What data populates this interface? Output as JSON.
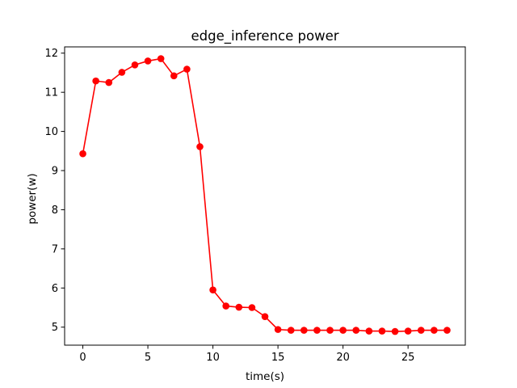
{
  "chart_data": {
    "type": "line",
    "title": "edge_inference power",
    "xlabel": "time(s)",
    "ylabel": "power(w)",
    "xlim": [
      -1.4,
      29.4
    ],
    "ylim": [
      4.54,
      12.16
    ],
    "xticks": [
      0,
      5,
      10,
      15,
      20,
      25
    ],
    "yticks": [
      5,
      6,
      7,
      8,
      9,
      10,
      11,
      12
    ],
    "grid": false,
    "series": [
      {
        "color": "#ff0000",
        "marker": "circle",
        "x": [
          0,
          1,
          2,
          3,
          4,
          5,
          6,
          7,
          8,
          9,
          10,
          11,
          12,
          13,
          14,
          15,
          16,
          17,
          18,
          19,
          20,
          21,
          22,
          23,
          24,
          25,
          26,
          27,
          28
        ],
        "y": [
          9.43,
          11.29,
          11.25,
          11.51,
          11.7,
          11.8,
          11.86,
          11.42,
          11.59,
          9.61,
          5.95,
          5.54,
          5.51,
          5.5,
          5.27,
          4.94,
          4.92,
          4.92,
          4.92,
          4.92,
          4.92,
          4.92,
          4.9,
          4.9,
          4.89,
          4.9,
          4.92,
          4.92,
          4.92
        ]
      }
    ]
  }
}
